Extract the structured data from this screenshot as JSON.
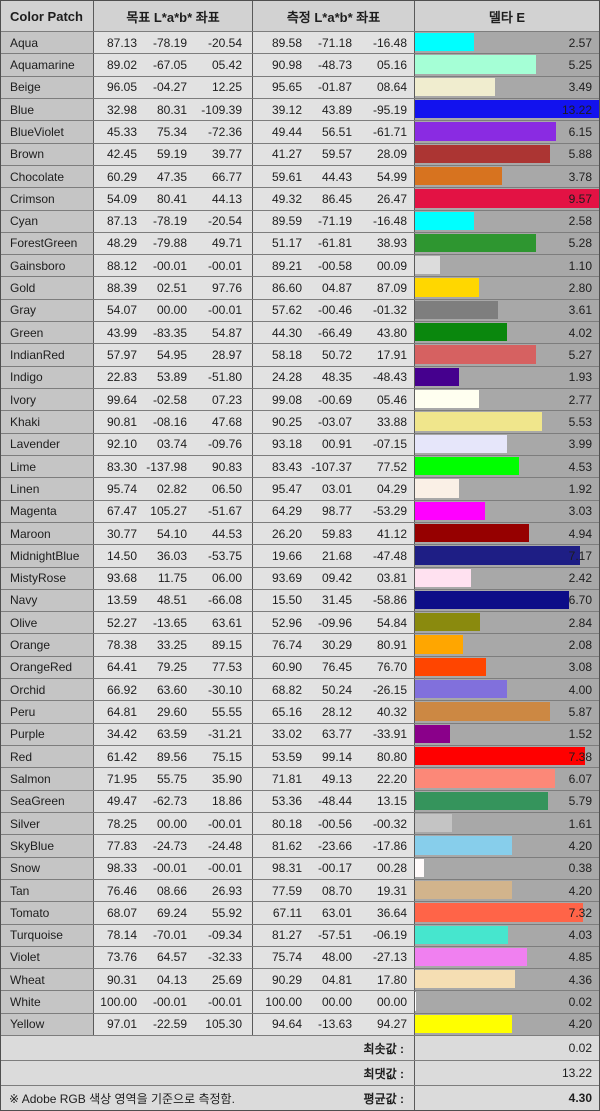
{
  "chart_data": {
    "type": "table",
    "title": "Color patch L*a*b* accuracy report (delta E)",
    "columns": [
      "Color Patch",
      "목표 L*a*b* 좌표",
      "측정 L*a*b* 좌표",
      "델타 E"
    ],
    "bar_axis": {
      "min": 0,
      "max": 8,
      "note": "delta-E data bar fills cell at 8, clipped beyond"
    },
    "rows": [
      {
        "name": "Aqua",
        "bar_color": "#00FFFF",
        "target": [
          87.13,
          -78.19,
          -20.54
        ],
        "measured": [
          89.58,
          -71.18,
          -16.48
        ],
        "delta": 2.57
      },
      {
        "name": "Aquamarine",
        "bar_color": "#A5FFD6",
        "target": [
          89.02,
          -67.05,
          5.42
        ],
        "measured": [
          90.98,
          -48.73,
          5.16
        ],
        "delta": 5.25
      },
      {
        "name": "Beige",
        "bar_color": "#F0EDCF",
        "target": [
          96.05,
          -4.27,
          12.25
        ],
        "measured": [
          95.65,
          -1.87,
          8.64
        ],
        "delta": 3.49
      },
      {
        "name": "Blue",
        "bar_color": "#1212EE",
        "target": [
          32.98,
          80.31,
          -109.39
        ],
        "measured": [
          39.12,
          43.89,
          -95.19
        ],
        "delta": 13.22
      },
      {
        "name": "BlueViolet",
        "bar_color": "#8A2BE2",
        "target": [
          45.33,
          75.34,
          -72.36
        ],
        "measured": [
          49.44,
          56.51,
          -61.71
        ],
        "delta": 6.15
      },
      {
        "name": "Brown",
        "bar_color": "#AC3533",
        "target": [
          42.45,
          59.19,
          39.77
        ],
        "measured": [
          41.27,
          59.57,
          28.09
        ],
        "delta": 5.88
      },
      {
        "name": "Chocolate",
        "bar_color": "#D7731F",
        "target": [
          60.29,
          47.35,
          66.77
        ],
        "measured": [
          59.61,
          44.43,
          54.99
        ],
        "delta": 3.78
      },
      {
        "name": "Crimson",
        "bar_color": "#E31244",
        "target": [
          54.09,
          80.41,
          44.13
        ],
        "measured": [
          49.32,
          86.45,
          26.47
        ],
        "delta": 9.57
      },
      {
        "name": "Cyan",
        "bar_color": "#00FFFF",
        "target": [
          87.13,
          -78.19,
          -20.54
        ],
        "measured": [
          89.59,
          -71.19,
          -16.48
        ],
        "delta": 2.58
      },
      {
        "name": "ForestGreen",
        "bar_color": "#2E9630",
        "target": [
          48.29,
          -79.88,
          49.71
        ],
        "measured": [
          51.17,
          -61.81,
          38.93
        ],
        "delta": 5.28
      },
      {
        "name": "Gainsboro",
        "bar_color": "#DCDCDC",
        "target": [
          88.12,
          -0.01,
          -0.01
        ],
        "measured": [
          89.21,
          -0.58,
          0.09
        ],
        "delta": 1.1
      },
      {
        "name": "Gold",
        "bar_color": "#FFD700",
        "target": [
          88.39,
          2.51,
          97.76
        ],
        "measured": [
          86.6,
          4.87,
          87.09
        ],
        "delta": 2.8
      },
      {
        "name": "Gray",
        "bar_color": "#7E7E7E",
        "target": [
          54.07,
          0.0,
          -0.01
        ],
        "measured": [
          57.62,
          -0.46,
          -1.32
        ],
        "delta": 3.61
      },
      {
        "name": "Green",
        "bar_color": "#0A870D",
        "target": [
          43.99,
          -83.35,
          54.87
        ],
        "measured": [
          44.3,
          -66.49,
          43.8
        ],
        "delta": 4.02
      },
      {
        "name": "IndianRed",
        "bar_color": "#D66161",
        "target": [
          57.97,
          54.95,
          28.97
        ],
        "measured": [
          58.18,
          50.72,
          17.91
        ],
        "delta": 5.27
      },
      {
        "name": "Indigo",
        "bar_color": "#45008E",
        "target": [
          22.83,
          53.89,
          -51.8
        ],
        "measured": [
          24.28,
          48.35,
          -48.43
        ],
        "delta": 1.93
      },
      {
        "name": "Ivory",
        "bar_color": "#FFFFF0",
        "target": [
          99.64,
          -2.58,
          7.23
        ],
        "measured": [
          99.08,
          -0.69,
          5.46
        ],
        "delta": 2.77
      },
      {
        "name": "Khaki",
        "bar_color": "#F0E68C",
        "target": [
          90.81,
          -8.16,
          47.68
        ],
        "measured": [
          90.25,
          -3.07,
          33.88
        ],
        "delta": 5.53
      },
      {
        "name": "Lavender",
        "bar_color": "#E6E6FA",
        "target": [
          92.1,
          3.74,
          -9.76
        ],
        "measured": [
          93.18,
          0.91,
          -7.15
        ],
        "delta": 3.99
      },
      {
        "name": "Lime",
        "bar_color": "#00FF00",
        "target": [
          83.3,
          -137.98,
          90.83
        ],
        "measured": [
          83.43,
          -107.37,
          77.52
        ],
        "delta": 4.53
      },
      {
        "name": "Linen",
        "bar_color": "#FAF0E6",
        "target": [
          95.74,
          2.82,
          6.5
        ],
        "measured": [
          95.47,
          3.01,
          4.29
        ],
        "delta": 1.92
      },
      {
        "name": "Magenta",
        "bar_color": "#FF00FF",
        "target": [
          67.47,
          105.27,
          -51.67
        ],
        "measured": [
          64.29,
          98.77,
          -53.29
        ],
        "delta": 3.03
      },
      {
        "name": "Maroon",
        "bar_color": "#960000",
        "target": [
          30.77,
          54.1,
          44.53
        ],
        "measured": [
          26.2,
          59.83,
          41.12
        ],
        "delta": 4.94
      },
      {
        "name": "MidnightBlue",
        "bar_color": "#1E1E85",
        "target": [
          14.5,
          36.03,
          -53.75
        ],
        "measured": [
          19.66,
          21.68,
          -47.48
        ],
        "delta": 7.17
      },
      {
        "name": "MistyRose",
        "bar_color": "#FFE1F0",
        "target": [
          93.68,
          11.75,
          6.0
        ],
        "measured": [
          93.69,
          9.42,
          3.81
        ],
        "delta": 2.42
      },
      {
        "name": "Navy",
        "bar_color": "#0D0D88",
        "target": [
          13.59,
          48.51,
          -66.08
        ],
        "measured": [
          15.5,
          31.45,
          -58.86
        ],
        "delta": 6.7
      },
      {
        "name": "Olive",
        "bar_color": "#8A8A0E",
        "target": [
          52.27,
          -13.65,
          63.61
        ],
        "measured": [
          52.96,
          -9.96,
          54.84
        ],
        "delta": 2.84
      },
      {
        "name": "Orange",
        "bar_color": "#FFA600",
        "target": [
          78.38,
          33.25,
          89.15
        ],
        "measured": [
          76.74,
          30.29,
          80.91
        ],
        "delta": 2.08
      },
      {
        "name": "OrangeRed",
        "bar_color": "#FF4500",
        "target": [
          64.41,
          79.25,
          77.53
        ],
        "measured": [
          60.9,
          76.45,
          76.7
        ],
        "delta": 3.08
      },
      {
        "name": "Orchid",
        "bar_color": "#8170DC",
        "target": [
          66.92,
          63.6,
          -30.1
        ],
        "measured": [
          68.82,
          50.24,
          -26.15
        ],
        "delta": 4.0
      },
      {
        "name": "Peru",
        "bar_color": "#CC8843",
        "target": [
          64.81,
          29.6,
          55.55
        ],
        "measured": [
          65.16,
          28.12,
          40.32
        ],
        "delta": 5.87
      },
      {
        "name": "Purple",
        "bar_color": "#8A008A",
        "target": [
          34.42,
          63.59,
          -31.21
        ],
        "measured": [
          33.02,
          63.77,
          -33.91
        ],
        "delta": 1.52
      },
      {
        "name": "Red",
        "bar_color": "#FF0000",
        "target": [
          61.42,
          89.56,
          75.15
        ],
        "measured": [
          53.59,
          99.14,
          80.8
        ],
        "delta": 7.38
      },
      {
        "name": "Salmon",
        "bar_color": "#FC8878",
        "target": [
          71.95,
          55.75,
          35.9
        ],
        "measured": [
          71.81,
          49.13,
          22.2
        ],
        "delta": 6.07
      },
      {
        "name": "SeaGreen",
        "bar_color": "#35945C",
        "target": [
          49.47,
          -62.73,
          18.86
        ],
        "measured": [
          53.36,
          -48.44,
          13.15
        ],
        "delta": 5.79
      },
      {
        "name": "Silver",
        "bar_color": "#C4C4C4",
        "target": [
          78.25,
          0.0,
          -0.01
        ],
        "measured": [
          80.18,
          -0.56,
          -0.32
        ],
        "delta": 1.61
      },
      {
        "name": "SkyBlue",
        "bar_color": "#87CEEB",
        "target": [
          77.83,
          -24.73,
          -24.48
        ],
        "measured": [
          81.62,
          -23.66,
          -17.86
        ],
        "delta": 4.2
      },
      {
        "name": "Snow",
        "bar_color": "#FFFAFA",
        "target": [
          98.33,
          -0.01,
          -0.01
        ],
        "measured": [
          98.31,
          -0.17,
          0.28
        ],
        "delta": 0.38
      },
      {
        "name": "Tan",
        "bar_color": "#D2B48C",
        "target": [
          76.46,
          8.66,
          26.93
        ],
        "measured": [
          77.59,
          8.7,
          19.31
        ],
        "delta": 4.2
      },
      {
        "name": "Tomato",
        "bar_color": "#FF6448",
        "target": [
          68.07,
          69.24,
          55.92
        ],
        "measured": [
          67.11,
          63.01,
          36.64
        ],
        "delta": 7.32
      },
      {
        "name": "Turquoise",
        "bar_color": "#46E6CE",
        "target": [
          78.14,
          -70.01,
          -9.34
        ],
        "measured": [
          81.27,
          -57.51,
          -6.19
        ],
        "delta": 4.03
      },
      {
        "name": "Violet",
        "bar_color": "#F080F0",
        "target": [
          73.76,
          64.57,
          -32.33
        ],
        "measured": [
          75.74,
          48.0,
          -27.13
        ],
        "delta": 4.85
      },
      {
        "name": "Wheat",
        "bar_color": "#F5DEB3",
        "target": [
          90.31,
          4.13,
          25.69
        ],
        "measured": [
          90.29,
          4.81,
          17.8
        ],
        "delta": 4.36
      },
      {
        "name": "White",
        "bar_color": "#FFFFFF",
        "target": [
          100.0,
          -0.01,
          -0.01
        ],
        "measured": [
          100.0,
          0.0,
          0.0
        ],
        "delta": 0.02
      },
      {
        "name": "Yellow",
        "bar_color": "#FFFF00",
        "target": [
          97.01,
          -22.59,
          105.3
        ],
        "measured": [
          94.64,
          -13.63,
          94.27
        ],
        "delta": 4.2
      }
    ],
    "summary": {
      "min": 0.02,
      "max": 13.22,
      "avg": 4.3
    }
  },
  "footer": {
    "min_label": "최솟값 :",
    "min_value": "0.02",
    "max_label": "최댓값 :",
    "max_value": "13.22",
    "avg_label": "평균값 :",
    "avg_value": "4.30",
    "note": "※ Adobe RGB 색상 영역을 기준으로 측정함."
  },
  "colors": {
    "header_bg": "#d2d2d2",
    "name_cell_bg": "#c5c5c5",
    "value_cell_bg": "#e2e2e2",
    "bar_track_bg": "#a8a8a8",
    "footer_bg": "#dbdbdb",
    "grid_line": "#5a5a5a",
    "text": "#1d1d1d"
  }
}
